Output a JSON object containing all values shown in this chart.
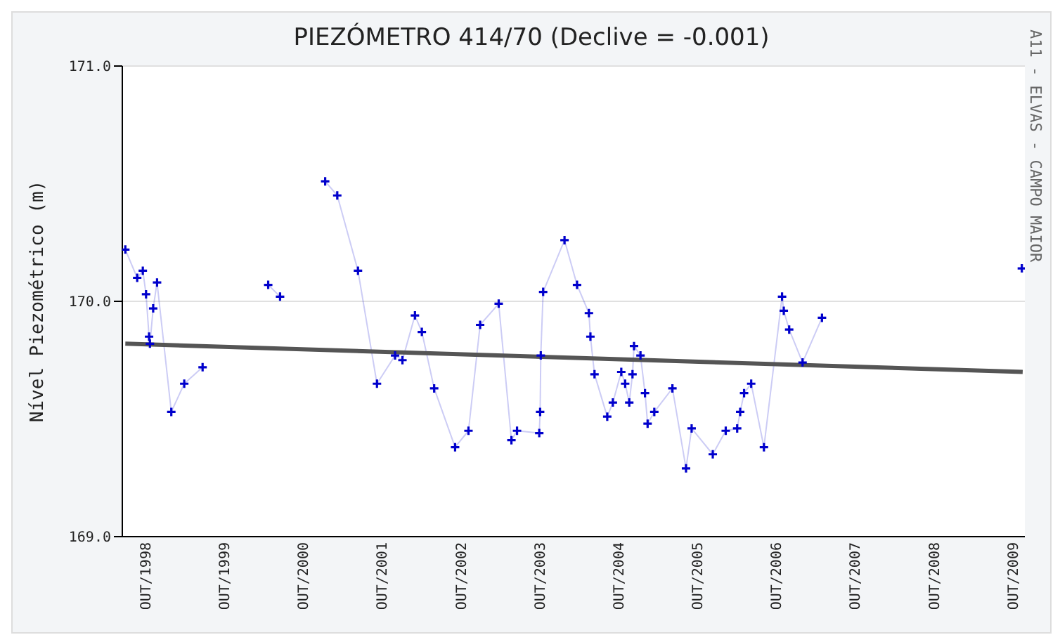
{
  "chart_data": {
    "type": "line",
    "title": "PIEZÓMETRO 414/70 (Declive = -0.001)",
    "ylabel": "Nível Piezométrico (m)",
    "annotations": [
      "A11 - ELVAS - CAMPO MAIOR"
    ],
    "xlim": [
      "1998-06-13",
      "2009-11-24"
    ],
    "ylim": [
      169,
      171
    ],
    "xticks": [
      {
        "value": "1998-10-01",
        "label": "OUT/1998"
      },
      {
        "value": "1999-10-01",
        "label": "OUT/1999"
      },
      {
        "value": "2000-10-01",
        "label": "OUT/2000"
      },
      {
        "value": "2001-10-01",
        "label": "OUT/2001"
      },
      {
        "value": "2002-10-01",
        "label": "OUT/2002"
      },
      {
        "value": "2003-10-01",
        "label": "OUT/2003"
      },
      {
        "value": "2004-10-01",
        "label": "OUT/2004"
      },
      {
        "value": "2005-10-01",
        "label": "OUT/2005"
      },
      {
        "value": "2006-10-01",
        "label": "OUT/2006"
      },
      {
        "value": "2007-10-01",
        "label": "OUT/2007"
      },
      {
        "value": "2008-10-01",
        "label": "OUT/2008"
      },
      {
        "value": "2009-10-01",
        "label": "OUT/2009"
      }
    ],
    "yticks": [
      {
        "value": 169,
        "label": "169.0"
      },
      {
        "value": 170,
        "label": "170.0"
      },
      {
        "value": 171,
        "label": "171.0"
      }
    ],
    "grid": "y",
    "legend": false,
    "series": [
      {
        "color": "#0000cc",
        "marker": "cross",
        "x": [
          "1998-06-27",
          "1998-08-21",
          "1998-09-16",
          "1998-10-01",
          "1998-10-15",
          "1998-10-19",
          "1998-11-03",
          "1998-11-21",
          "1999-01-26",
          "1999-03-27",
          "1999-06-20",
          "1999-11-25",
          "2000-04-19",
          "2000-06-13",
          "2000-09-13",
          "2001-01-08",
          "2001-03-05",
          "2001-06-09",
          "2001-09-05",
          "2001-11-28",
          "2002-01-01",
          "2002-02-28",
          "2002-04-01",
          "2002-05-28",
          "2002-09-02",
          "2002-11-03",
          "2002-12-27",
          "2003-03-23",
          "2003-05-21",
          "2003-06-16",
          "2003-09-27",
          "2003-10-01",
          "2003-10-04",
          "2003-10-15",
          "2004-01-22",
          "2004-03-20",
          "2004-05-14",
          "2004-05-21",
          "2004-06-09",
          "2004-08-07",
          "2004-09-02",
          "2004-10-11",
          "2004-10-29",
          "2004-11-17",
          "2004-12-02",
          "2004-12-09",
          "2005-01-08",
          "2005-01-29",
          "2005-02-10",
          "2005-03-13",
          "2005-06-05",
          "2005-08-07",
          "2005-09-02",
          "2005-12-09",
          "2006-02-07",
          "2006-04-01",
          "2006-04-15",
          "2006-05-03",
          "2006-06-05",
          "2006-08-03",
          "2006-10-26",
          "2006-11-03",
          "2006-11-28",
          "2007-01-29",
          "2007-04-29",
          "2008-07-01",
          "2009-11-10"
        ],
        "values": [
          170.22,
          170.1,
          170.13,
          170.03,
          169.85,
          169.82,
          169.97,
          170.08,
          169.53,
          169.65,
          169.72,
          null,
          170.07,
          170.02,
          null,
          170.51,
          170.45,
          170.13,
          169.65,
          169.77,
          169.75,
          169.94,
          169.87,
          169.63,
          169.38,
          169.45,
          169.9,
          169.99,
          169.41,
          169.45,
          169.44,
          169.53,
          169.77,
          170.04,
          170.26,
          170.07,
          169.95,
          169.85,
          169.69,
          169.51,
          169.57,
          169.7,
          169.65,
          169.57,
          169.69,
          169.81,
          169.77,
          169.61,
          169.48,
          169.53,
          169.63,
          169.29,
          169.46,
          169.35,
          169.45,
          169.46,
          169.53,
          169.61,
          169.65,
          169.38,
          170.02,
          169.96,
          169.88,
          169.74,
          169.93,
          null,
          170.14
        ]
      },
      {
        "color": "#555555",
        "marker": "none",
        "x": [
          "1998-06-27",
          "2009-11-14"
        ],
        "values": [
          169.82,
          169.7
        ]
      }
    ]
  }
}
